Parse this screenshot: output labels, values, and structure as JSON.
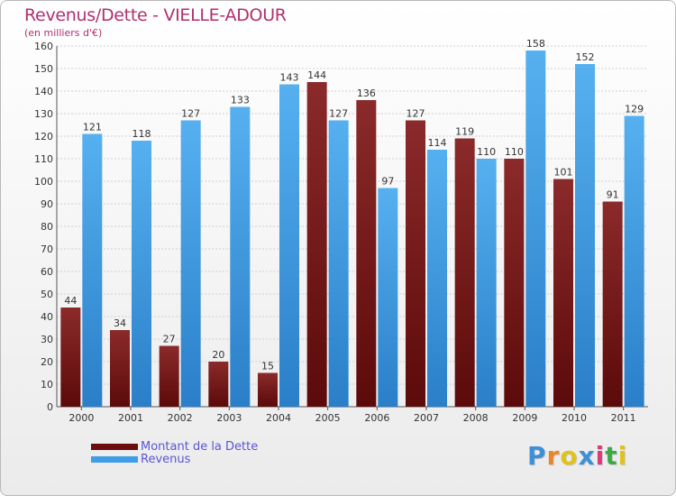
{
  "chart_data": {
    "type": "bar",
    "title": "Revenus/Dette - VIELLE-ADOUR",
    "subtitle": "(en milliers d'€)",
    "categories": [
      "2000",
      "2001",
      "2002",
      "2003",
      "2004",
      "2005",
      "2006",
      "2007",
      "2008",
      "2009",
      "2010",
      "2011"
    ],
    "series": [
      {
        "name": "Montant de la Dette",
        "color": "#7a1a1a",
        "values": [
          44,
          34,
          27,
          20,
          15,
          144,
          136,
          127,
          119,
          110,
          101,
          91
        ]
      },
      {
        "name": "Revenus",
        "color": "#3e9de8",
        "values": [
          121,
          118,
          127,
          133,
          143,
          127,
          97,
          114,
          110,
          158,
          152,
          129
        ]
      }
    ],
    "ylim": [
      0,
      160
    ],
    "yticks": [
      0,
      10,
      20,
      30,
      40,
      50,
      60,
      70,
      80,
      90,
      100,
      110,
      120,
      130,
      140,
      150,
      160
    ],
    "grid": true,
    "legend_position": "bottom-left"
  },
  "logo": {
    "letters": [
      "P",
      "r",
      "o",
      "x",
      "i",
      "t",
      "i"
    ],
    "colors": [
      "#3d8fd6",
      "#e8862a",
      "#e0c21f",
      "#3d8fd6",
      "#d93a7a",
      "#3daa4a",
      "#e0c21f"
    ]
  }
}
